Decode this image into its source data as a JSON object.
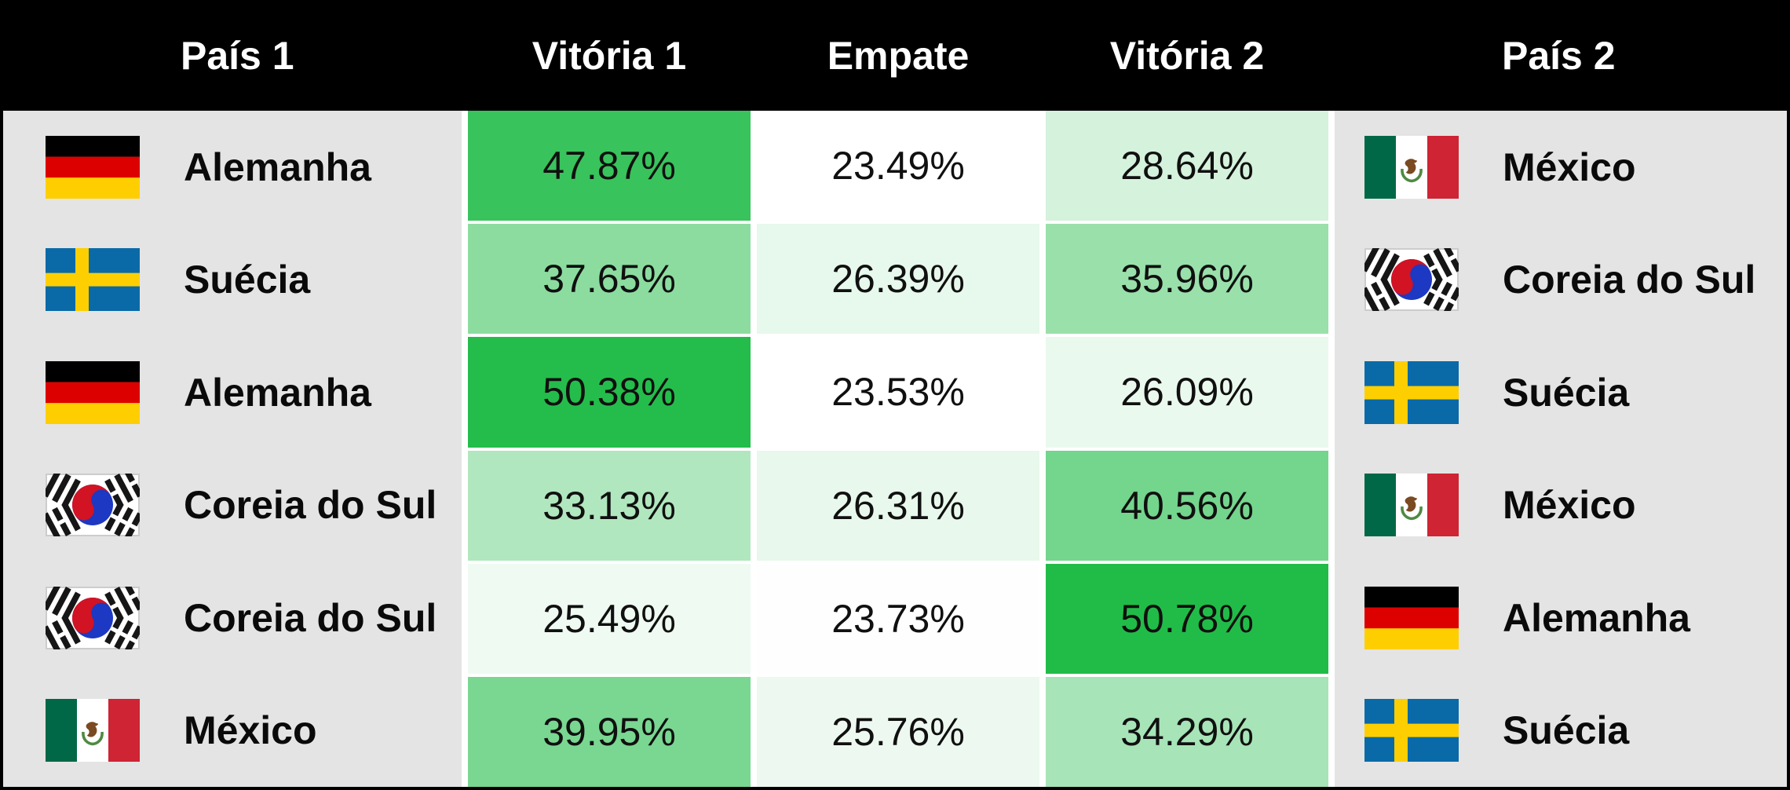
{
  "header": {
    "columns": [
      "País 1",
      "Vitória 1",
      "Empate",
      "Vitória 2",
      "País 2"
    ]
  },
  "colors": {
    "header_bg": "#000000",
    "header_text": "#ffffff",
    "panel_bg": "#e4e4e4",
    "gap_bg": "#ffffff",
    "page_border": "#000000",
    "cell_text": "#101010"
  },
  "flags": {
    "de": {
      "icon": "germany-flag-icon",
      "black": "#000000",
      "red": "#dd0000",
      "gold": "#ffce00"
    },
    "se": {
      "icon": "sweden-flag-icon",
      "field": "#0a6aa7",
      "cross": "#fdcf00"
    },
    "kr": {
      "icon": "south-korea-flag-icon",
      "field": "#ffffff",
      "border": "#cccccc",
      "taegeuk_red": "#d21323",
      "taegeuk_blue": "#1d38c2",
      "trigram": "#161616"
    },
    "mx": {
      "icon": "mexico-flag-icon",
      "green": "#006847",
      "white": "#ffffff",
      "red": "#ce2434",
      "eagle": "#7a4a22",
      "wreath": "#4e8a43"
    }
  },
  "chart_data": {
    "type": "heatmap",
    "title": "",
    "columns": [
      "País 1",
      "Vitória 1",
      "Empate",
      "Vitória 2",
      "País 2"
    ],
    "value_format": "percent_2dp",
    "color_scale": {
      "min": 23.49,
      "max": 50.78,
      "low": "#ffffff",
      "high": "#21bc48"
    },
    "rows": [
      {
        "team1": "Alemanha",
        "flag1": "de",
        "win1_pct": 47.87,
        "draw_pct": 23.49,
        "win2_pct": 28.64,
        "team2": "México",
        "flag2": "mx"
      },
      {
        "team1": "Suécia",
        "flag1": "se",
        "win1_pct": 37.65,
        "draw_pct": 26.39,
        "win2_pct": 35.96,
        "team2": "Coreia do Sul",
        "flag2": "kr"
      },
      {
        "team1": "Alemanha",
        "flag1": "de",
        "win1_pct": 50.38,
        "draw_pct": 23.53,
        "win2_pct": 26.09,
        "team2": "Suécia",
        "flag2": "se"
      },
      {
        "team1": "Coreia do Sul",
        "flag1": "kr",
        "win1_pct": 33.13,
        "draw_pct": 26.31,
        "win2_pct": 40.56,
        "team2": "México",
        "flag2": "mx"
      },
      {
        "team1": "Coreia do Sul",
        "flag1": "kr",
        "win1_pct": 25.49,
        "draw_pct": 23.73,
        "win2_pct": 50.78,
        "team2": "Alemanha",
        "flag2": "de"
      },
      {
        "team1": "México",
        "flag1": "mx",
        "win1_pct": 39.95,
        "draw_pct": 25.76,
        "win2_pct": 34.29,
        "team2": "Suécia",
        "flag2": "se"
      }
    ]
  }
}
